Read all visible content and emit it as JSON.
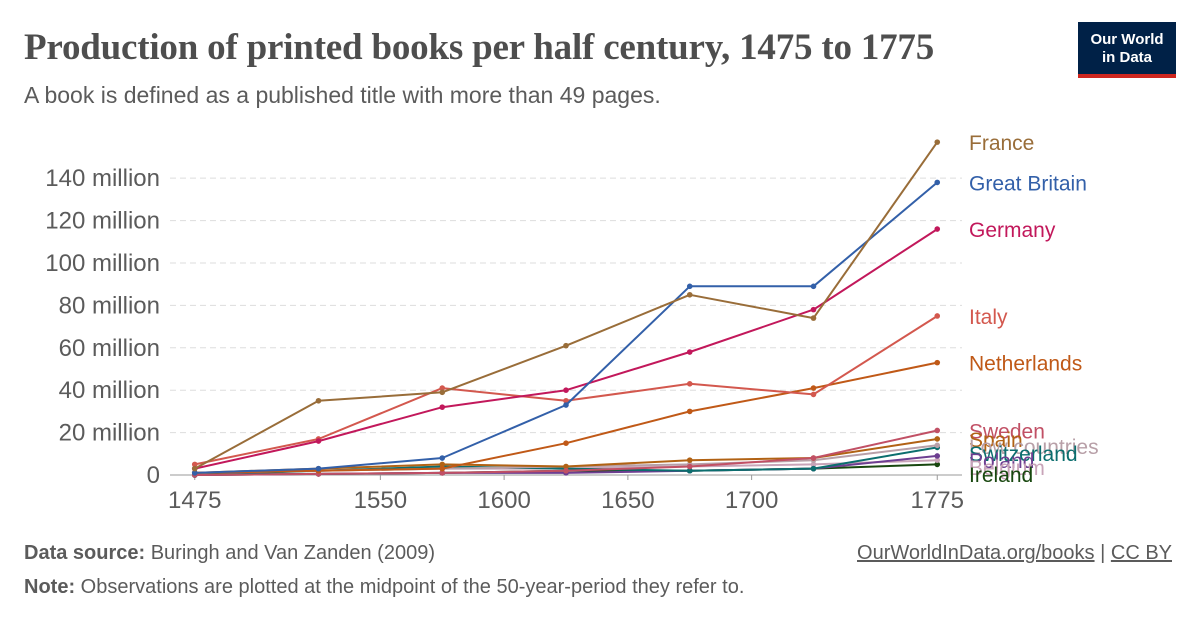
{
  "header": {
    "title": "Production of printed books per half century, 1475 to 1775",
    "subtitle": "A book is defined as a published title with more than 49 pages.",
    "logo_line1": "Our World",
    "logo_line2": "in Data"
  },
  "footer": {
    "source_label": "Data source:",
    "source_text": "Buringh and Van Zanden (2009)",
    "link_text": "OurWorldInData.org/books",
    "separator": "|",
    "license_text": "CC BY",
    "note_label": "Note:",
    "note_text": "Observations are plotted at the midpoint of the 50-year-period they refer to."
  },
  "chart_data": {
    "type": "line",
    "xlim": [
      1465,
      1785
    ],
    "ylim": [
      0,
      158000000
    ],
    "x_ticks": [
      1475,
      1550,
      1600,
      1650,
      1700,
      1775
    ],
    "y_ticks": [
      0,
      20000000,
      40000000,
      60000000,
      80000000,
      100000000,
      120000000,
      140000000
    ],
    "y_tick_labels": [
      "0",
      "20 million",
      "40 million",
      "60 million",
      "80 million",
      "100 million",
      "120 million",
      "140 million"
    ],
    "grid": "horizontal dashed",
    "legend": "labels at line ends",
    "series": [
      {
        "name": "France",
        "color": "#996d39",
        "x": [
          1475,
          1525,
          1575,
          1625,
          1675,
          1725,
          1775
        ],
        "y": [
          3000000,
          35000000,
          39000000,
          61000000,
          85000000,
          74000000,
          157000000
        ]
      },
      {
        "name": "Great Britain",
        "color": "#3360a9",
        "x": [
          1475,
          1525,
          1575,
          1625,
          1675,
          1725,
          1775
        ],
        "y": [
          1000000,
          3000000,
          8000000,
          33000000,
          89000000,
          89000000,
          138000000
        ]
      },
      {
        "name": "Germany",
        "color": "#c2185b",
        "x": [
          1475,
          1525,
          1575,
          1625,
          1675,
          1725,
          1775
        ],
        "y": [
          3000000,
          16000000,
          32000000,
          40000000,
          58000000,
          78000000,
          116000000
        ]
      },
      {
        "name": "Italy",
        "color": "#d3584e",
        "x": [
          1475,
          1525,
          1575,
          1625,
          1675,
          1725,
          1775
        ],
        "y": [
          5000000,
          17000000,
          41000000,
          35000000,
          43000000,
          38000000,
          75000000
        ]
      },
      {
        "name": "Netherlands",
        "color": "#c05917",
        "x": [
          1475,
          1525,
          1575,
          1625,
          1675,
          1725,
          1775
        ],
        "y": [
          1000000,
          2000000,
          3000000,
          15000000,
          30000000,
          41000000,
          53000000
        ]
      },
      {
        "name": "Sweden",
        "color": "#c15065",
        "x": [
          1475,
          1525,
          1575,
          1625,
          1675,
          1725,
          1775
        ],
        "y": [
          0,
          500000,
          1000000,
          2000000,
          4000000,
          8000000,
          21000000
        ]
      },
      {
        "name": "Spain",
        "color": "#b16214",
        "x": [
          1475,
          1525,
          1575,
          1625,
          1675,
          1725,
          1775
        ],
        "y": [
          1000000,
          3000000,
          5000000,
          4000000,
          7000000,
          8000000,
          17000000
        ]
      },
      {
        "name": "Low countries",
        "color": "#b8a0a8",
        "x": [
          1475,
          1525,
          1575,
          1625,
          1675,
          1725,
          1775
        ],
        "y": [
          1000000,
          2000000,
          3000000,
          4000000,
          5000000,
          7000000,
          14000000
        ]
      },
      {
        "name": "Switzerland",
        "color": "#0b6e6e",
        "x": [
          1475,
          1525,
          1575,
          1625,
          1675,
          1725,
          1775
        ],
        "y": [
          0,
          2000000,
          4000000,
          3000000,
          2000000,
          3000000,
          13000000
        ]
      },
      {
        "name": "Poland",
        "color": "#6d3e91",
        "x": [
          1475,
          1525,
          1575,
          1625,
          1675,
          1725,
          1775
        ],
        "y": [
          0,
          500000,
          1000000,
          1000000,
          2000000,
          3000000,
          9000000
        ]
      },
      {
        "name": "Belgium",
        "color": "#c8a4b8",
        "x": [
          1475,
          1525,
          1575,
          1625,
          1675,
          1725,
          1775
        ],
        "y": [
          1000000,
          2000000,
          3000000,
          3000000,
          4000000,
          5000000,
          7000000
        ]
      },
      {
        "name": "Ireland",
        "color": "#18470f",
        "x": [
          1475,
          1525,
          1575,
          1625,
          1675,
          1725,
          1775
        ],
        "y": [
          0,
          500000,
          1000000,
          2000000,
          2000000,
          3000000,
          5000000
        ]
      }
    ]
  }
}
